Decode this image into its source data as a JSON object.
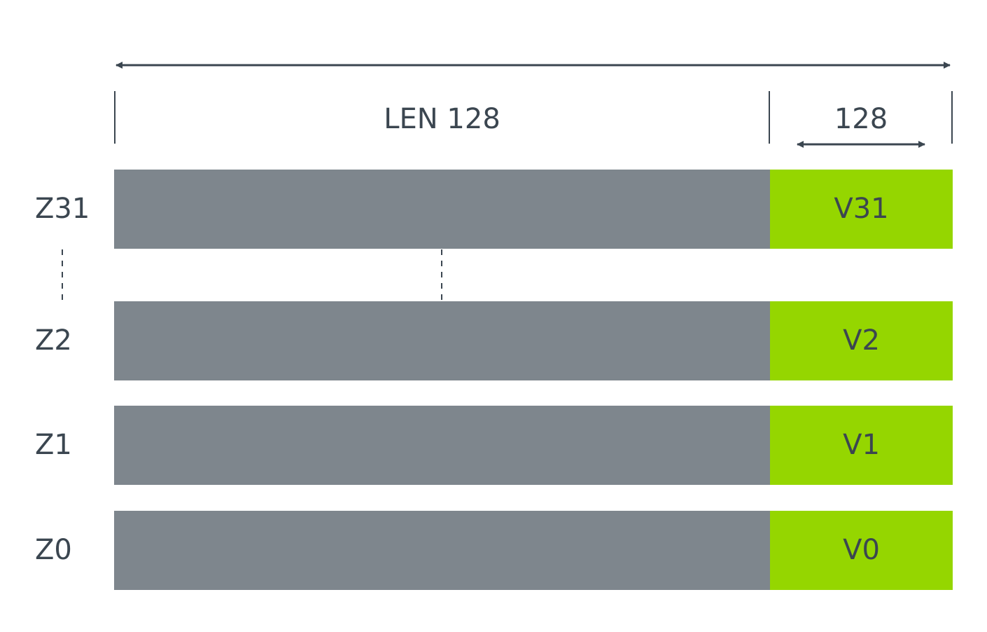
{
  "dimensions": {
    "total_width_label": "LEN 128",
    "v_width_label": "128"
  },
  "rows": [
    {
      "z_label": "Z31",
      "v_label": "V31"
    },
    {
      "z_label": "Z2",
      "v_label": "V2"
    },
    {
      "z_label": "Z1",
      "v_label": "V1"
    },
    {
      "z_label": "Z0",
      "v_label": "V0"
    }
  ],
  "colors": {
    "z_register": "#7e868d",
    "v_register": "#95d600",
    "text": "#3b4650",
    "lines": "#3b4650"
  }
}
